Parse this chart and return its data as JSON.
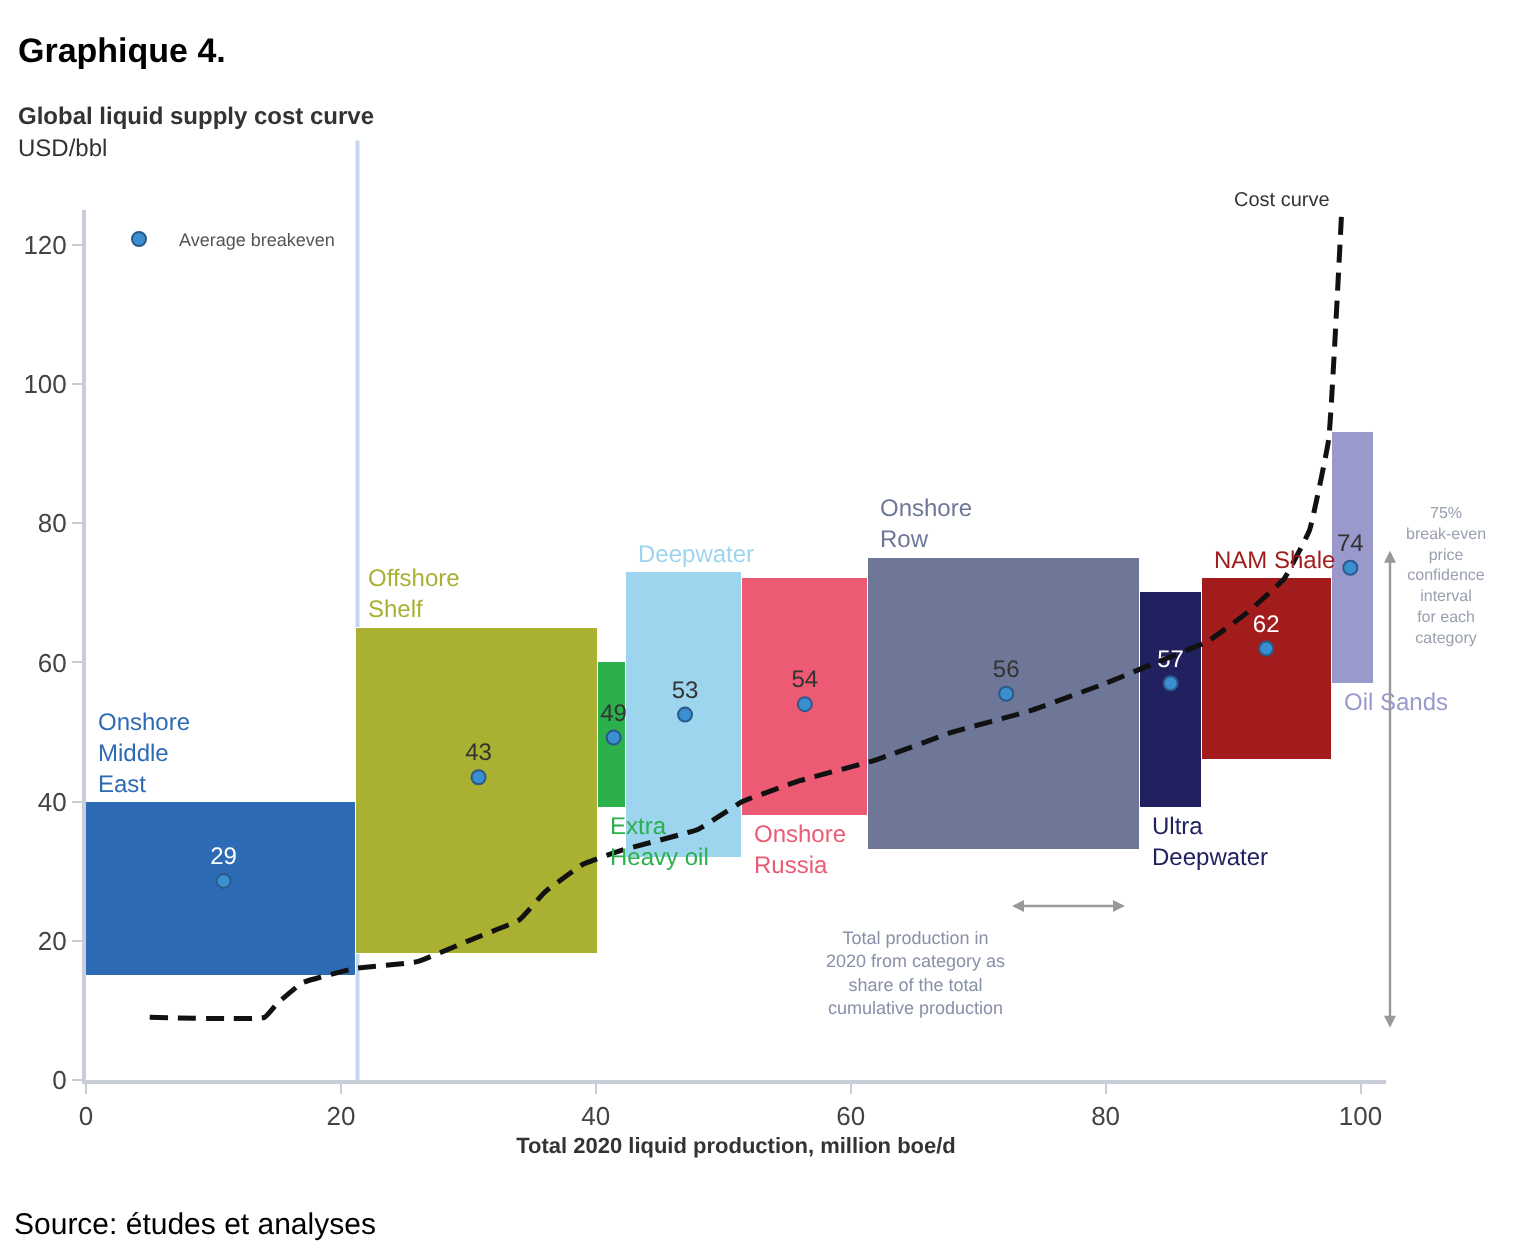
{
  "chart_data": {
    "type": "histogram",
    "title": "Graphique 4.",
    "subtitle": "Global liquid supply cost curve",
    "ylabel": "USD/bbl",
    "xlabel": "Total 2020 liquid production, million boe/d",
    "categories": [
      "Onshore Middle East",
      "Offshore Shelf",
      "Extra Heavy oil",
      "Deepwater",
      "Onshore Russia",
      "Onshore Row",
      "Ultra Deepwater",
      "NAM Shale",
      "Oil Sands"
    ],
    "bins": [
      0,
      21.2,
      40.2,
      42.4,
      51.5,
      61.4,
      82.7,
      87.6,
      97.8,
      101
    ],
    "values": [
      25,
      47,
      21,
      41,
      34,
      42,
      31,
      26,
      36
    ],
    "base": [
      15,
      18,
      39,
      32,
      38,
      33,
      39,
      46,
      57
    ],
    "colors": [
      "#2e6bb5",
      "#a9b032",
      "#2bb04b",
      "#9dd5ef",
      "#ec5a73",
      "#6e7797",
      "#21215f",
      "#a31c1c",
      "#9999cc"
    ],
    "series": [
      {
        "type": "scatter",
        "name": "Average breakeven",
        "color": "#3a8fd0",
        "marker": "circle",
        "x": [
          10.8,
          30.8,
          41.4,
          47,
          56.4,
          72.2,
          85.1,
          92.6,
          99.2
        ],
        "values": [
          28.6,
          43.5,
          49.2,
          52.5,
          54,
          55.5,
          57,
          62,
          73.6
        ],
        "value_labels": [
          "29",
          "43",
          "49",
          "53",
          "54",
          "56",
          "57",
          "62",
          "74"
        ]
      },
      {
        "type": "line",
        "name": "Cost curve",
        "color": "#111111",
        "line_style": "dashed",
        "marker": "none",
        "x": [
          5,
          14,
          15,
          17,
          21,
          26,
          30,
          34,
          36,
          39,
          42,
          48,
          51.5,
          56,
          62,
          68,
          74,
          80,
          84,
          88,
          91,
          94,
          96,
          97.5,
          98.5
        ],
        "values": [
          9,
          9,
          11,
          14,
          16,
          17,
          20,
          23,
          27,
          31,
          33,
          36,
          40,
          43,
          46,
          50,
          53,
          57,
          60,
          63,
          67,
          72,
          79,
          92,
          124
        ]
      }
    ],
    "ref_lines": [
      {
        "axis": "x",
        "value": 21.3,
        "color": "#c5d5ea"
      }
    ],
    "annotations": [
      "Total production in 2020 from category as share of the total cumulative production",
      "75% break-even price confidence interval for each category",
      "Source: études et analyses"
    ],
    "xlim": [
      0,
      102
    ],
    "ylim": [
      0,
      125
    ],
    "xticks": [
      0,
      20,
      40,
      60,
      80,
      100
    ],
    "yticks": [
      0,
      20,
      40,
      60,
      80,
      100,
      120
    ],
    "grid": false,
    "legend": "top left"
  }
}
